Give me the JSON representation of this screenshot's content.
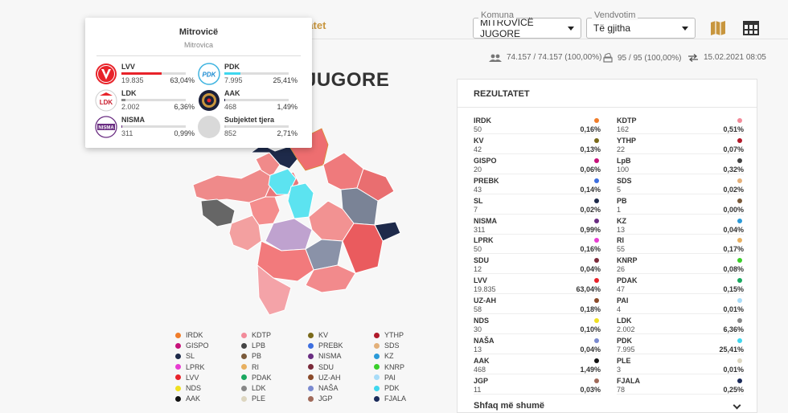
{
  "header": {
    "active_tab": "tatet",
    "komuna_label": "Komuna",
    "komuna_value": "MITROVICË JUGORE",
    "vendvotim_label": "Vendvotim",
    "vendvotim_value": "Të gjitha",
    "icons": [
      "map-icon",
      "table-icon"
    ]
  },
  "stats": {
    "voters": "74.157 / 74.157 (100,00%)",
    "stations": "95 / 95 (100,00%)",
    "updated": "15.02.2021 08:05"
  },
  "page_title": "JUGORE",
  "popup": {
    "title": "Mitrovicë",
    "subtitle": "Mitrovica",
    "items": [
      {
        "name": "LVV",
        "votes": "19.835",
        "pct": "63,04%",
        "share": 0.6304,
        "color": "#e8232a",
        "logo": "V"
      },
      {
        "name": "PDK",
        "votes": "7.995",
        "pct": "25,41%",
        "share": 0.2541,
        "color": "#3fd7ee",
        "logo": "PDK"
      },
      {
        "name": "LDK",
        "votes": "2.002",
        "pct": "6,36%",
        "share": 0.0636,
        "color": "#888888",
        "logo": "LDK"
      },
      {
        "name": "AAK",
        "votes": "468",
        "pct": "1,49%",
        "share": 0.0149,
        "color": "#222244",
        "logo": "AAK"
      },
      {
        "name": "NISMA",
        "votes": "311",
        "pct": "0,99%",
        "share": 0.0099,
        "color": "#6a2d82",
        "logo": "NISMA"
      },
      {
        "name": "Subjektet tjera",
        "votes": "852",
        "pct": "2,71%",
        "share": 0.0271,
        "color": "#cccccc",
        "logo": ""
      }
    ]
  },
  "map_legend": [
    [
      "IRDK",
      "KDTP",
      "KV",
      "YTHP"
    ],
    [
      "GISPO",
      "LPB",
      "PREBK",
      "SDS"
    ],
    [
      "SL",
      "PB",
      "NISMA",
      "KZ"
    ],
    [
      "LPRK",
      "RI",
      "SDU",
      "KNRP"
    ],
    [
      "LVV",
      "PDAK",
      "UZ-AH",
      "PAI"
    ],
    [
      "NDS",
      "LDK",
      "NAŠA",
      "PDK"
    ],
    [
      "AAK",
      "PLE",
      "JGP",
      "FJALA"
    ]
  ],
  "legend_colors": {
    "IRDK": "#f07d2a",
    "KDTP": "#f28b9a",
    "KV": "#7a6a1a",
    "YTHP": "#b01a2a",
    "GISPO": "#c6127a",
    "LPB": "#444444",
    "PREBK": "#3d6fe0",
    "SDS": "#e3b07a",
    "SL": "#1e2a4a",
    "PB": "#7a5a3a",
    "NISMA": "#6a2d82",
    "KZ": "#2a9ad8",
    "LPRK": "#e83cd2",
    "RI": "#e8b060",
    "SDU": "#7a2a3a",
    "KNRP": "#3acf2a",
    "LVV": "#e8232a",
    "PDAK": "#1aa860",
    "UZ-AH": "#8a4a2a",
    "PAI": "#a8dcf8",
    "NDS": "#f0e020",
    "LDK": "#888888",
    "NAŠA": "#7a8ad0",
    "PDK": "#3fd7ee",
    "AAK": "#111111",
    "PLE": "#ddd6c0",
    "JGP": "#a06a5a",
    "FJALA": "#1a2a5a"
  },
  "results": {
    "title": "REZULTATET",
    "left": [
      {
        "name": "IRDK",
        "votes": "50",
        "pct": "0,16%"
      },
      {
        "name": "KV",
        "votes": "42",
        "pct": "0,13%"
      },
      {
        "name": "GISPO",
        "votes": "20",
        "pct": "0,06%"
      },
      {
        "name": "PREBK",
        "votes": "43",
        "pct": "0,14%"
      },
      {
        "name": "SL",
        "votes": "7",
        "pct": "0,02%"
      },
      {
        "name": "NISMA",
        "votes": "311",
        "pct": "0,99%"
      },
      {
        "name": "LPRK",
        "votes": "50",
        "pct": "0,16%"
      },
      {
        "name": "SDU",
        "votes": "12",
        "pct": "0,04%"
      },
      {
        "name": "LVV",
        "votes": "19.835",
        "pct": "63,04%"
      },
      {
        "name": "UZ-AH",
        "votes": "58",
        "pct": "0,18%"
      },
      {
        "name": "NDS",
        "votes": "30",
        "pct": "0,10%"
      },
      {
        "name": "NAŠA",
        "votes": "13",
        "pct": "0,04%"
      },
      {
        "name": "AAK",
        "votes": "468",
        "pct": "1,49%"
      },
      {
        "name": "JGP",
        "votes": "11",
        "pct": "0,03%"
      }
    ],
    "right": [
      {
        "name": "KDTP",
        "votes": "162",
        "pct": "0,51%"
      },
      {
        "name": "YTHP",
        "votes": "22",
        "pct": "0,07%"
      },
      {
        "name": "LpB",
        "votes": "100",
        "pct": "0,32%"
      },
      {
        "name": "SDS",
        "votes": "5",
        "pct": "0,02%"
      },
      {
        "name": "PB",
        "votes": "1",
        "pct": "0,00%"
      },
      {
        "name": "KZ",
        "votes": "13",
        "pct": "0,04%"
      },
      {
        "name": "RI",
        "votes": "55",
        "pct": "0,17%"
      },
      {
        "name": "KNRP",
        "votes": "26",
        "pct": "0,08%"
      },
      {
        "name": "PDAK",
        "votes": "47",
        "pct": "0,15%"
      },
      {
        "name": "PAI",
        "votes": "4",
        "pct": "0,01%"
      },
      {
        "name": "LDK",
        "votes": "2.002",
        "pct": "6,36%"
      },
      {
        "name": "PDK",
        "votes": "7.995",
        "pct": "25,41%"
      },
      {
        "name": "PLE",
        "votes": "3",
        "pct": "0,01%"
      },
      {
        "name": "FJALA",
        "votes": "78",
        "pct": "0,25%"
      }
    ],
    "more_label": "Shfaq më shumë"
  }
}
